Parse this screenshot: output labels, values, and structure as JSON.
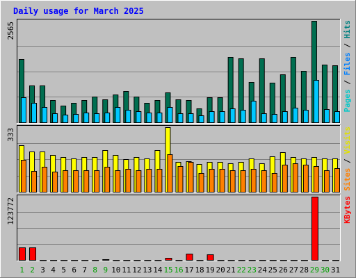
{
  "chart_data": {
    "type": "bar",
    "title": "Daily usage for March 2025",
    "days": [
      "1",
      "2",
      "3",
      "4",
      "5",
      "6",
      "7",
      "8",
      "9",
      "10",
      "11",
      "12",
      "13",
      "14",
      "15",
      "16",
      "17",
      "18",
      "19",
      "20",
      "21",
      "22",
      "23",
      "24",
      "25",
      "26",
      "27",
      "28",
      "29",
      "30",
      "31"
    ],
    "weekend_days": [
      "1",
      "2",
      "8",
      "9",
      "15",
      "16",
      "22",
      "23",
      "29",
      "30"
    ],
    "panels": [
      {
        "id": "hits",
        "max_label": "2565",
        "ylim": [
          0,
          2565
        ],
        "legend": [
          "Pages",
          "Files",
          "Hits"
        ],
        "series": [
          {
            "name": "Hits",
            "color": "#006e50",
            "values": [
              1610,
              940,
              940,
              570,
              430,
              500,
              580,
              660,
              600,
              720,
              800,
              660,
              500,
              580,
              760,
              590,
              570,
              370,
              640,
              640,
              1650,
              1630,
              1030,
              1620,
              1020,
              1220,
              1660,
              1310,
              2565,
              1460,
              1450
            ]
          },
          {
            "name": "Files",
            "color": "#00c8ff",
            "values": [
              650,
              510,
              400,
              240,
              210,
              230,
              260,
              250,
              270,
              400,
              330,
              300,
              260,
              260,
              400,
              240,
              250,
              200,
              290,
              300,
              370,
              340,
              550,
              240,
              220,
              300,
              380,
              330,
              1080,
              350,
              300
            ]
          },
          {
            "name": "Pages",
            "color": "#00ffff",
            "values": [
              0,
              0,
              0,
              0,
              0,
              0,
              0,
              0,
              0,
              0,
              0,
              0,
              0,
              0,
              0,
              0,
              0,
              0,
              0,
              0,
              0,
              0,
              0,
              0,
              0,
              0,
              0,
              0,
              0,
              0,
              0
            ]
          }
        ]
      },
      {
        "id": "visits",
        "max_label": "333",
        "ylim": [
          0,
          333
        ],
        "legend": [
          "Sites",
          "Visits"
        ],
        "series": [
          {
            "name": "Visits",
            "color": "#ffff00",
            "values": [
              240,
              210,
              210,
              190,
              180,
              175,
              180,
              180,
              215,
              190,
              170,
              180,
              175,
              215,
              333,
              155,
              160,
              145,
              155,
              155,
              150,
              155,
              175,
              150,
              185,
              205,
              180,
              175,
              180,
              175,
              175
            ]
          },
          {
            "name": "Sites",
            "color": "#ff8000",
            "values": [
              165,
              110,
              130,
              105,
              115,
              115,
              115,
              115,
              130,
              115,
              120,
              115,
              120,
              120,
              195,
              133,
              155,
              100,
              120,
              120,
              115,
              115,
              120,
              115,
              100,
              140,
              150,
              140,
              135,
              115,
              125
            ]
          }
        ]
      },
      {
        "id": "kbytes",
        "max_label": "123772",
        "ylim": [
          0,
          123772
        ],
        "legend": [
          "KBytes"
        ],
        "series": [
          {
            "name": "KBytes",
            "color": "#ff0000",
            "values": [
              25000,
              25000,
              500,
              500,
              500,
              500,
              500,
              500,
              2500,
              500,
              500,
              500,
              500,
              500,
              6000,
              500,
              13500,
              500,
              12000,
              500,
              500,
              500,
              500,
              500,
              500,
              500,
              500,
              500,
              123772,
              500,
              500
            ]
          }
        ]
      }
    ]
  }
}
